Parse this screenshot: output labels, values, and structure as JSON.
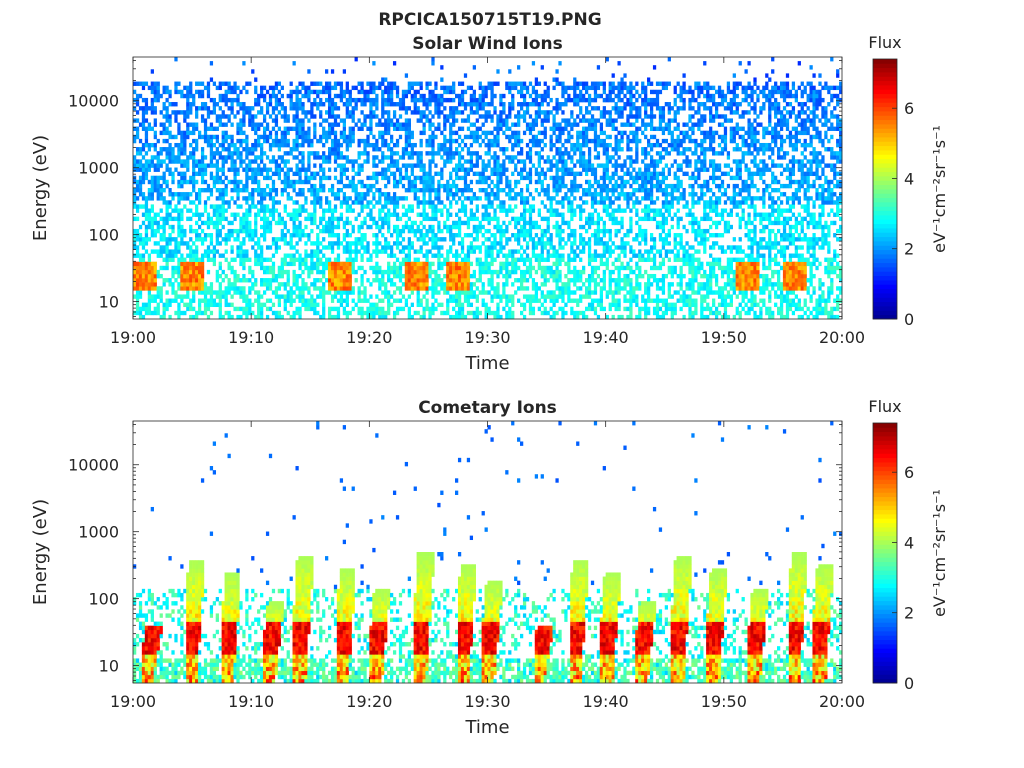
{
  "figure": {
    "title": "RPCICA150715T19.PNG"
  },
  "colormap": [
    "#00008f",
    "#0000ff",
    "#0080ff",
    "#00ffff",
    "#80ff80",
    "#ffff00",
    "#ff8000",
    "#ff0000",
    "#800000"
  ],
  "chart_data": [
    {
      "type": "heatmap",
      "title": "Solar Wind Ions",
      "xlabel": "Time",
      "ylabel": "Energy (eV)",
      "x_ticks": [
        "19:00",
        "19:10",
        "19:20",
        "19:30",
        "19:40",
        "19:50",
        "20:00"
      ],
      "x_range_minutes": [
        0,
        60
      ],
      "y_scale": "log",
      "y_ticks": [
        "10",
        "100",
        "1000",
        "10000"
      ],
      "y_range": [
        5.5,
        45000
      ],
      "colorbar": {
        "title": "Flux",
        "label": "eV⁻¹cm⁻²sr⁻¹s⁻¹",
        "range": [
          0,
          7.4
        ],
        "ticks": [
          "0",
          "2",
          "4",
          "6"
        ]
      },
      "features": {
        "background_level_high_energy": 1.7,
        "background_level_mid_energy": 2.6,
        "peak_level_low_energy": 5.5,
        "bursts_minutes": [
          1.0,
          5.0,
          17.5,
          24.0,
          27.5,
          52.0,
          56.0
        ]
      }
    },
    {
      "type": "heatmap",
      "title": "Cometary Ions",
      "xlabel": "Time",
      "ylabel": "Energy (eV)",
      "x_ticks": [
        "19:00",
        "19:10",
        "19:20",
        "19:30",
        "19:40",
        "19:50",
        "20:00"
      ],
      "x_range_minutes": [
        0,
        60
      ],
      "y_scale": "log",
      "y_ticks": [
        "10",
        "100",
        "1000",
        "10000"
      ],
      "y_range": [
        5.5,
        45000
      ],
      "colorbar": {
        "title": "Flux",
        "label": "eV⁻¹cm⁻²sr⁻¹s⁻¹",
        "range": [
          0,
          7.4
        ],
        "ticks": [
          "0",
          "2",
          "4",
          "6"
        ]
      },
      "features": {
        "bursts_minutes": [
          1.2,
          4.8,
          7.9,
          11.5,
          14.0,
          17.6,
          20.5,
          24.2,
          27.8,
          30.0,
          34.3,
          37.3,
          40.0,
          43.0,
          46.0,
          49.0,
          52.5,
          55.8,
          58.0
        ],
        "burst_peak_level": 7.0,
        "sparse_high_energy_level": 1.5
      }
    }
  ]
}
